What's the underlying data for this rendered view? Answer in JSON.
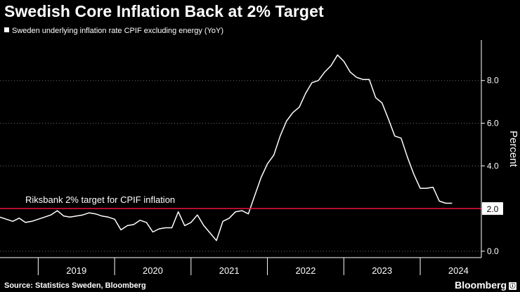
{
  "title": "Swedish Core Inflation Back at 2% Target",
  "legend_label": "Sweden underlying inflation rate CPIF excluding energy (YoY)",
  "source": "Source: Statistics Sweden, Bloomberg",
  "brand": "Bloomberg",
  "brand_mark": "ⓘ",
  "colors": {
    "background": "#000000",
    "line": "#ffffff",
    "target": "#e8153f",
    "grid": "#6e6e6e"
  },
  "chart_data": {
    "type": "line",
    "title": "Swedish Core Inflation Back at 2% Target",
    "xlabel": "",
    "ylabel": "Percent",
    "ylim": [
      -0.3,
      9.9
    ],
    "xlim": [
      2018.5,
      2024.8
    ],
    "yticks": [
      {
        "value": 0,
        "label": "0.0"
      },
      {
        "value": 2,
        "label": "2.0"
      },
      {
        "value": 4,
        "label": "4.0"
      },
      {
        "value": 6,
        "label": "6.0"
      },
      {
        "value": 8,
        "label": "8.0"
      }
    ],
    "year_labels": [
      "2019",
      "2020",
      "2021",
      "2022",
      "2023",
      "2024"
    ],
    "annotation": {
      "text": "Riksbank 2% target for CPIF inflation",
      "value": 2.0,
      "label": "2.0"
    },
    "series": [
      {
        "name": "Sweden underlying inflation rate CPIF excluding energy (YoY)",
        "x": [
          2018.5,
          2018.583,
          2018.667,
          2018.75,
          2018.833,
          2018.917,
          2019.0,
          2019.083,
          2019.167,
          2019.25,
          2019.333,
          2019.417,
          2019.5,
          2019.583,
          2019.667,
          2019.75,
          2019.833,
          2019.917,
          2020.0,
          2020.083,
          2020.167,
          2020.25,
          2020.333,
          2020.417,
          2020.5,
          2020.583,
          2020.667,
          2020.75,
          2020.833,
          2020.917,
          2021.0,
          2021.083,
          2021.167,
          2021.25,
          2021.333,
          2021.417,
          2021.5,
          2021.583,
          2021.667,
          2021.75,
          2021.833,
          2021.917,
          2022.0,
          2022.083,
          2022.167,
          2022.25,
          2022.333,
          2022.417,
          2022.5,
          2022.583,
          2022.667,
          2022.75,
          2022.833,
          2022.917,
          2023.0,
          2023.083,
          2023.167,
          2023.25,
          2023.333,
          2023.417,
          2023.5,
          2023.583,
          2023.667,
          2023.75,
          2023.833,
          2023.917,
          2024.0,
          2024.083,
          2024.167,
          2024.25,
          2024.333,
          2024.417
        ],
        "values": [
          1.6,
          1.5,
          1.4,
          1.55,
          1.35,
          1.4,
          1.5,
          1.6,
          1.7,
          1.9,
          1.65,
          1.6,
          1.65,
          1.7,
          1.8,
          1.75,
          1.65,
          1.6,
          1.5,
          1.0,
          1.2,
          1.25,
          1.45,
          1.35,
          0.9,
          1.05,
          1.1,
          1.1,
          1.85,
          1.2,
          1.35,
          1.7,
          1.2,
          0.85,
          0.5,
          1.4,
          1.55,
          1.85,
          1.9,
          1.75,
          2.6,
          3.45,
          4.1,
          4.5,
          5.4,
          6.1,
          6.5,
          6.75,
          7.4,
          7.9,
          8.0,
          8.4,
          8.7,
          9.2,
          8.9,
          8.4,
          8.15,
          8.05,
          8.05,
          7.2,
          6.95,
          6.2,
          5.4,
          5.3,
          4.4,
          3.6,
          2.95,
          2.95,
          3.0,
          2.35,
          2.25,
          2.25
        ]
      }
    ]
  }
}
